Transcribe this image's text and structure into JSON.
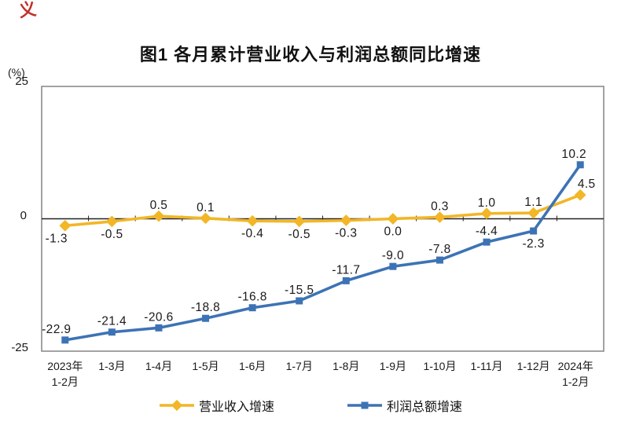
{
  "page": {
    "red_mark": "义"
  },
  "chart": {
    "title": "图1  各月累计营业收入与利润总额同比增速",
    "unit_label": "(%)",
    "y_axis": {
      "max_label": "25",
      "zero_label": "0",
      "min_label": "-25"
    }
  },
  "chart_data": {
    "type": "line",
    "title": "图1 各月累计营业收入与利润总额同比增速",
    "ylabel": "(%)",
    "ylim": [
      -25,
      25
    ],
    "yticks": [
      25,
      0,
      -25
    ],
    "grid": false,
    "legend_position": "bottom",
    "categories": [
      "2023年\n1-2月",
      "1-3月",
      "1-4月",
      "1-5月",
      "1-6月",
      "1-7月",
      "1-8月",
      "1-9月",
      "1-10月",
      "1-11月",
      "1-12月",
      "2024年\n1-2月"
    ],
    "series": [
      {
        "name": "营业收入增速",
        "color": "#f2b626",
        "marker": "diamond",
        "values": [
          -1.3,
          -0.5,
          0.5,
          0.1,
          -0.4,
          -0.5,
          -0.3,
          0.0,
          0.3,
          1.0,
          1.1,
          4.5
        ],
        "label_position": [
          "below",
          "below",
          "above",
          "above",
          "below",
          "below",
          "below",
          "below",
          "above",
          "above",
          "above",
          "above"
        ]
      },
      {
        "name": "利润总额增速",
        "color": "#3d73b5",
        "marker": "square",
        "values": [
          -22.9,
          -21.4,
          -20.6,
          -18.8,
          -16.8,
          -15.5,
          -11.7,
          -9.0,
          -7.8,
          -4.4,
          -2.3,
          10.2
        ],
        "label_position": [
          "above",
          "above",
          "above",
          "above",
          "above",
          "above",
          "above",
          "above",
          "above",
          "above",
          "below",
          "above"
        ]
      }
    ]
  }
}
